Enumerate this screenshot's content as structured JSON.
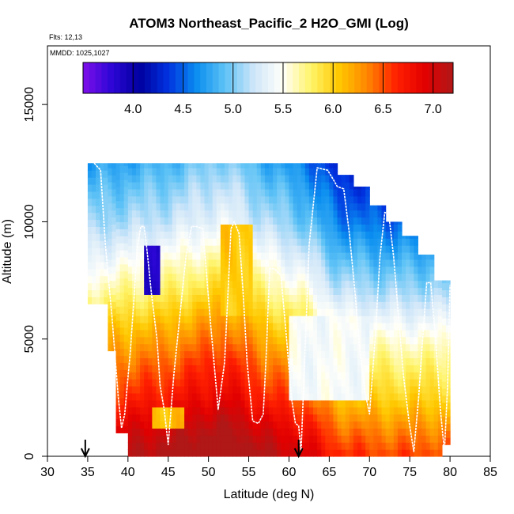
{
  "chart_data": {
    "type": "heatmap",
    "title": "ATOM3 Northeast_Pacific_2 H2O_GMI (Log)",
    "annotations": {
      "flights": "Flts: 12,13",
      "mmdd": "MMDD: 1025,1027"
    },
    "xlabel": "Latitude (deg N)",
    "ylabel": "Altitude (m)",
    "xlim": [
      30,
      85
    ],
    "ylim": [
      0,
      17500
    ],
    "x_ticks": [
      30,
      35,
      40,
      45,
      50,
      55,
      60,
      65,
      70,
      75,
      80,
      85
    ],
    "y_ticks": [
      0,
      5000,
      10000,
      15000
    ],
    "colorbar": {
      "range": [
        3.5,
        7.2
      ],
      "ticks": [
        4.0,
        4.5,
        5.0,
        5.5,
        6.0,
        6.5,
        7.0
      ],
      "tick_labels": [
        "4.0",
        "4.5",
        "5.0",
        "5.5",
        "6.0",
        "6.5",
        "7.0"
      ],
      "colors": [
        "#7e0fe9",
        "#2d06d6",
        "#00009f",
        "#0033e0",
        "#0b8ff0",
        "#5fc3f6",
        "#cfe6f9",
        "#fffffa",
        "#fff46a",
        "#ffc800",
        "#ff8500",
        "#ff2000",
        "#e20000",
        "#b01717"
      ]
    },
    "grid": false,
    "cell_size": {
      "lat": 0.5,
      "alt_m": 300
    },
    "columns": [
      {
        "lat_min": 35.0,
        "lat_max": 36.5,
        "top_m": 12500
      },
      {
        "lat_min": 36.5,
        "lat_max": 38.0,
        "top_m": 12500
      },
      {
        "lat_min": 38.0,
        "lat_max": 49.0,
        "top_m": 12500
      },
      {
        "lat_min": 49.0,
        "lat_max": 61.0,
        "top_m": 12500
      },
      {
        "lat_min": 61.0,
        "lat_max": 66.0,
        "top_m": 12500
      },
      {
        "lat_min": 66.0,
        "lat_max": 68.0,
        "top_m": 12000
      },
      {
        "lat_min": 68.0,
        "lat_max": 70.0,
        "top_m": 11500
      },
      {
        "lat_min": 70.0,
        "lat_max": 72.0,
        "top_m": 10700
      },
      {
        "lat_min": 72.0,
        "lat_max": 74.0,
        "top_m": 10000
      },
      {
        "lat_min": 74.0,
        "lat_max": 76.0,
        "top_m": 9400
      },
      {
        "lat_min": 76.0,
        "lat_max": 78.0,
        "top_m": 8600
      },
      {
        "lat_min": 78.0,
        "lat_max": 80.0,
        "top_m": 7500
      }
    ],
    "bottoms": [
      {
        "lat_min": 35.0,
        "lat_max": 37.5,
        "bottom_m": 6500
      },
      {
        "lat_min": 37.5,
        "lat_max": 38.5,
        "bottom_m": 4500
      },
      {
        "lat_min": 38.5,
        "lat_max": 40.0,
        "bottom_m": 1000
      },
      {
        "lat_min": 40.0,
        "lat_max": 79.0,
        "bottom_m": 0
      },
      {
        "lat_min": 79.0,
        "lat_max": 80.0,
        "bottom_m": 500
      }
    ],
    "log_h2o_by_altitude": [
      {
        "alt_m": 0,
        "value": 7.0
      },
      {
        "alt_m": 1000,
        "value": 6.8
      },
      {
        "alt_m": 2500,
        "value": 6.45
      },
      {
        "alt_m": 4000,
        "value": 6.2
      },
      {
        "alt_m": 5500,
        "value": 5.9
      },
      {
        "alt_m": 7000,
        "value": 5.55
      },
      {
        "alt_m": 8500,
        "value": 5.25
      },
      {
        "alt_m": 10000,
        "value": 4.95
      },
      {
        "alt_m": 11500,
        "value": 4.75
      },
      {
        "alt_m": 12500,
        "value": 4.6
      }
    ],
    "latitude_adjustment": [
      {
        "lat": 35,
        "delta": 0.1
      },
      {
        "lat": 45,
        "delta": 0.25
      },
      {
        "lat": 52,
        "delta": 0.45
      },
      {
        "lat": 57,
        "delta": 0.2
      },
      {
        "lat": 62,
        "delta": 0.0
      },
      {
        "lat": 66,
        "delta": -0.35
      },
      {
        "lat": 72,
        "delta": -0.45
      },
      {
        "lat": 80,
        "delta": -0.45
      }
    ],
    "features": [
      {
        "name": "dry-pocket",
        "lat_min": 42.0,
        "lat_max": 44.0,
        "alt_min_m": 7000,
        "alt_max_m": 9000,
        "value": 3.9
      },
      {
        "name": "moist-plume",
        "lat_min": 51.5,
        "lat_max": 55.5,
        "alt_min_m": 6000,
        "alt_max_m": 10000,
        "value": 6.05
      },
      {
        "name": "dry-band-north",
        "lat_min": 60.0,
        "lat_max": 70.0,
        "alt_min_m": 2500,
        "alt_max_m": 6000,
        "value": 5.45
      },
      {
        "name": "light-boundary-layer",
        "lat_min": 43.0,
        "lat_max": 47.0,
        "alt_min_m": 1200,
        "alt_max_m": 2200,
        "value": 6.1
      }
    ],
    "flight_track": {
      "lat": [
        35.8,
        36.6,
        37.2,
        38.0,
        38.8,
        39.2,
        39.6,
        40.3,
        41.2,
        41.6,
        42.0,
        42.3,
        42.6,
        42.9,
        43.6,
        44.0,
        44.5,
        45.0,
        45.7,
        46.6,
        47.2,
        47.9,
        48.5,
        49.3,
        50.3,
        51.2,
        52.0,
        52.5,
        52.8,
        53.2,
        53.8,
        54.3,
        54.8,
        55.5,
        56.2,
        56.8,
        57.2,
        57.6,
        58.2,
        59.0,
        59.7,
        60.3,
        60.8,
        61.2,
        61.5,
        62.0,
        62.5,
        63.5,
        64.8,
        65.5,
        66.0,
        66.8,
        67.5,
        68.2,
        68.8,
        69.4,
        70.0,
        70.7,
        71.3,
        71.9,
        72.4,
        73.0,
        73.6,
        74.2,
        74.9,
        75.5,
        76.1,
        76.6,
        77.1,
        77.6,
        78.2,
        78.8,
        79.3,
        79.7,
        80.0
      ],
      "alt_m": [
        12500,
        12200,
        9000,
        6000,
        2500,
        1200,
        1800,
        4500,
        9000,
        9800,
        9800,
        9000,
        8000,
        7000,
        5000,
        3000,
        2000,
        500,
        3500,
        6500,
        8500,
        9800,
        9800,
        9700,
        5500,
        2000,
        4000,
        7500,
        9700,
        10000,
        9500,
        7000,
        4000,
        1500,
        1400,
        1800,
        4500,
        8000,
        8000,
        7700,
        5000,
        2500,
        1400,
        1300,
        200,
        4500,
        9000,
        12300,
        12200,
        11800,
        11500,
        11400,
        9500,
        7000,
        4500,
        2800,
        1800,
        5000,
        8500,
        10400,
        10300,
        8500,
        6000,
        3500,
        1500,
        200,
        2500,
        5000,
        7400,
        7400,
        5000,
        2000,
        200,
        3000,
        7300
      ]
    },
    "arrows": [
      {
        "lat": 34.7
      },
      {
        "lat": 61.2
      }
    ]
  }
}
